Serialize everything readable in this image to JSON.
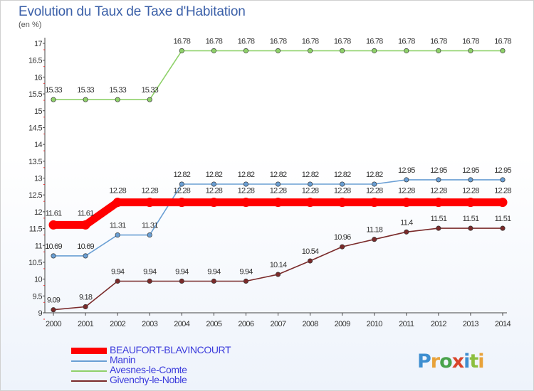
{
  "title": "Evolution du Taux de Taxe d'Habitation",
  "subtitle": "(en %)",
  "logo_text": "Proxiti",
  "chart_data": {
    "type": "line",
    "title": "Evolution du Taux de Taxe d'Habitation",
    "ylabel": "(en %)",
    "xlabel": "",
    "x": [
      "2000",
      "2001",
      "2002",
      "2003",
      "2004",
      "2005",
      "2006",
      "2007",
      "2008",
      "2009",
      "2010",
      "2011",
      "2012",
      "2013",
      "2014"
    ],
    "ylim": [
      9,
      17
    ],
    "yticks": [
      9,
      9.5,
      10,
      10.5,
      11,
      11.5,
      12,
      12.5,
      13,
      13.5,
      14,
      14.5,
      15,
      15.5,
      16,
      16.5,
      17
    ],
    "ytick_labels": [
      "9",
      "9.5",
      "10",
      "10.5",
      "11",
      "11.5",
      "12",
      "12.5",
      "13",
      "13.5",
      "14",
      "14.5",
      "15",
      "15.5",
      "16",
      "16.5",
      "17"
    ],
    "grid": false,
    "legend_position": "bottom-left",
    "series": [
      {
        "name": "BEAUFORT-BLAVINCOURT",
        "color": "#ff0000",
        "thick": true,
        "values": [
          11.61,
          11.61,
          12.28,
          12.28,
          12.28,
          12.28,
          12.28,
          12.28,
          12.28,
          12.28,
          12.28,
          12.28,
          12.28,
          12.28,
          12.28
        ],
        "labels": [
          "11.61",
          "11.61",
          "12.28",
          "12.28",
          "12.28",
          "12.28",
          "12.28",
          "12.28",
          "12.28",
          "12.28",
          "12.28",
          "12.28",
          "12.28",
          "12.28",
          "12.28"
        ]
      },
      {
        "name": "Manin",
        "color": "#6a9fd4",
        "values": [
          10.69,
          10.69,
          11.31,
          11.31,
          12.82,
          12.82,
          12.82,
          12.82,
          12.82,
          12.82,
          12.82,
          12.95,
          12.95,
          12.95,
          12.95
        ],
        "labels": [
          "10.69",
          "10.69",
          "11.31",
          "11.31",
          "12.82",
          "12.82",
          "12.82",
          "12.82",
          "12.82",
          "12.82",
          "12.82",
          "12.95",
          "12.95",
          "12.95",
          "12.95"
        ]
      },
      {
        "name": "Avesnes-le-Comte",
        "color": "#8fd16a",
        "values": [
          15.33,
          15.33,
          15.33,
          15.33,
          16.78,
          16.78,
          16.78,
          16.78,
          16.78,
          16.78,
          16.78,
          16.78,
          16.78,
          16.78,
          16.78
        ],
        "labels": [
          "15.33",
          "15.33",
          "15.33",
          "15.33",
          "16.78",
          "16.78",
          "16.78",
          "16.78",
          "16.78",
          "16.78",
          "16.78",
          "16.78",
          "16.78",
          "16.78",
          "16.78"
        ]
      },
      {
        "name": "Givenchy-le-Noble",
        "color": "#7a2a2a",
        "values": [
          9.09,
          9.18,
          9.94,
          9.94,
          9.94,
          9.94,
          9.94,
          10.14,
          10.54,
          10.96,
          11.18,
          11.4,
          11.51,
          11.51,
          11.51
        ],
        "labels": [
          "9.09",
          "9.18",
          "9.94",
          "9.94",
          "9.94",
          "9.94",
          "9.94",
          "10.14",
          "10.54",
          "10.96",
          "11.18",
          "11.4",
          "11.51",
          "11.51",
          "11.51"
        ]
      }
    ]
  }
}
